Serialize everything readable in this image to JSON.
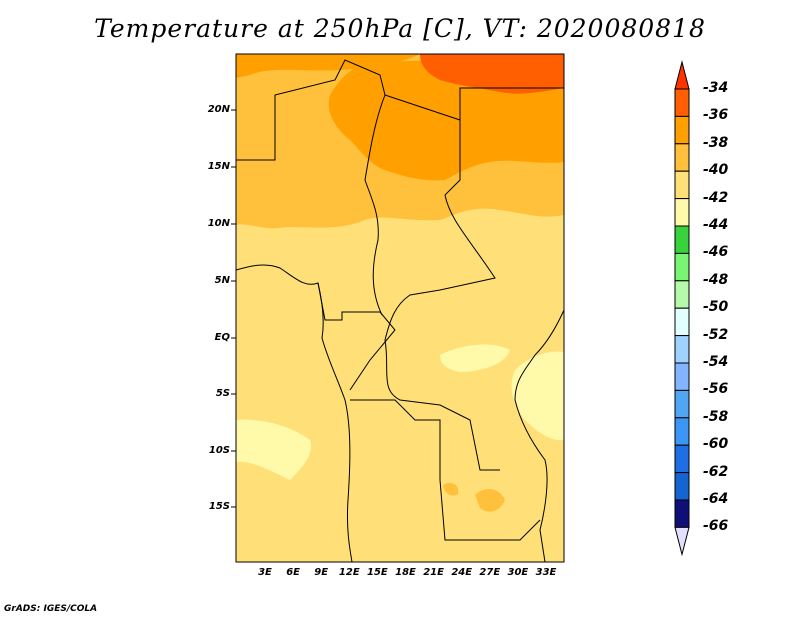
{
  "title": "Temperature at 250hPa [C], VT: 2020080818",
  "credit": "GrADS: IGES/COLA",
  "lat_labels": [
    "20N",
    "15N",
    "10N",
    "5N",
    "EQ",
    "5S",
    "10S",
    "15S"
  ],
  "lon_labels": [
    "3E",
    "6E",
    "9E",
    "12E",
    "15E",
    "18E",
    "21E",
    "24E",
    "27E",
    "30E",
    "33E"
  ],
  "colorbar": {
    "labels": [
      "-34",
      "-36",
      "-38",
      "-40",
      "-42",
      "-44",
      "-46",
      "-48",
      "-50",
      "-52",
      "-54",
      "-56",
      "-58",
      "-60",
      "-62",
      "-64",
      "-66"
    ],
    "top_arrow_color": "#ff3200",
    "bottom_arrow_color": "#e1e1ff",
    "colors": [
      "#ff5f00",
      "#ffa000",
      "#ffc03c",
      "#ffe078",
      "#fffaaa",
      "#37d23c",
      "#78f573",
      "#b4faaa",
      "#e1ffff",
      "#a0d2ff",
      "#82b4ff",
      "#50a5f5",
      "#3c96f5",
      "#1e6ee6",
      "#1464d2",
      "#0f0f78"
    ]
  }
}
